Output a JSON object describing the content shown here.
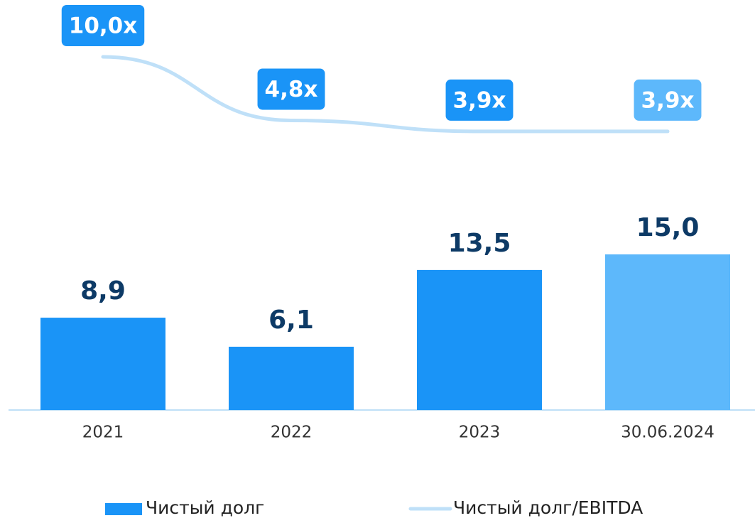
{
  "chart_data": {
    "type": "bar",
    "categories": [
      "2021",
      "2022",
      "2023",
      "30.06.2024"
    ],
    "series": [
      {
        "name": "Чистый долг",
        "type": "bar",
        "color": "#1a94f7",
        "colors": [
          "#1a94f7",
          "#1a94f7",
          "#1a94f7",
          "#5db8fb"
        ],
        "values": [
          8.9,
          6.1,
          13.5,
          15.0
        ],
        "value_labels": [
          "8,9",
          "6,1",
          "13,5",
          "15,0"
        ]
      },
      {
        "name": "Чистый долг/EBITDA",
        "type": "line",
        "axis": "y2",
        "color": "#bfe0f8",
        "label_colors": [
          "#1a94f7",
          "#1a94f7",
          "#1a94f7",
          "#5db8fb"
        ],
        "values": [
          10.0,
          4.8,
          3.9,
          3.9
        ],
        "value_labels": [
          "10,0x",
          "4,8x",
          "3,9x",
          "3,9x"
        ]
      }
    ],
    "ylim": [
      0,
      15
    ],
    "y2lim": [
      0,
      10
    ],
    "grid": false
  }
}
